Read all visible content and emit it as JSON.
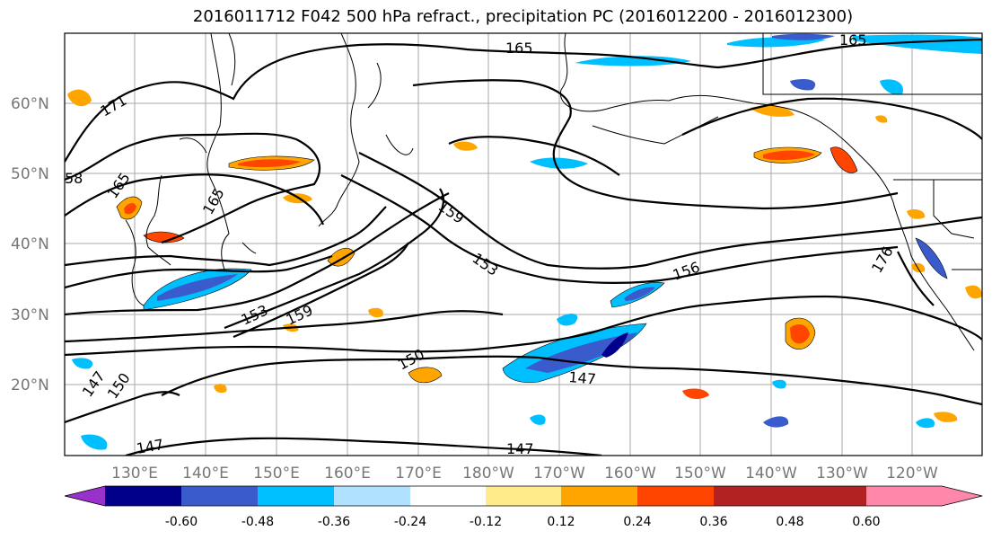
{
  "title": "2016011712 F042 500 hPa refract., precipitation PC (2016012200 - 2016012300)",
  "lat_labels": [
    "60°N",
    "50°N",
    "40°N",
    "30°N",
    "20°N"
  ],
  "lon_labels": [
    "130°E",
    "140°E",
    "150°E",
    "160°E",
    "170°E",
    "180°W",
    "170°W",
    "160°W",
    "150°W",
    "140°W",
    "130°W",
    "120°W"
  ],
  "colorbar": {
    "colors": [
      "#9932cc",
      "#00008b",
      "#3a5bcc",
      "#00bfff",
      "#b0e2ff",
      "#ffffff",
      "#ffeb8a",
      "#ffa500",
      "#ff4500",
      "#b22222",
      "#ff88aa"
    ],
    "tick_labels": [
      "-0.60",
      "-0.48",
      "-0.36",
      "-0.24",
      "-0.12",
      "0.12",
      "0.24",
      "0.36",
      "0.48",
      "0.60"
    ]
  },
  "contour_labels": [
    "165",
    "165",
    "171",
    "165",
    "159",
    "153",
    "156",
    "176",
    "153",
    "159",
    "150",
    "147",
    "147",
    "150",
    "147",
    "147",
    "58",
    "165"
  ]
}
